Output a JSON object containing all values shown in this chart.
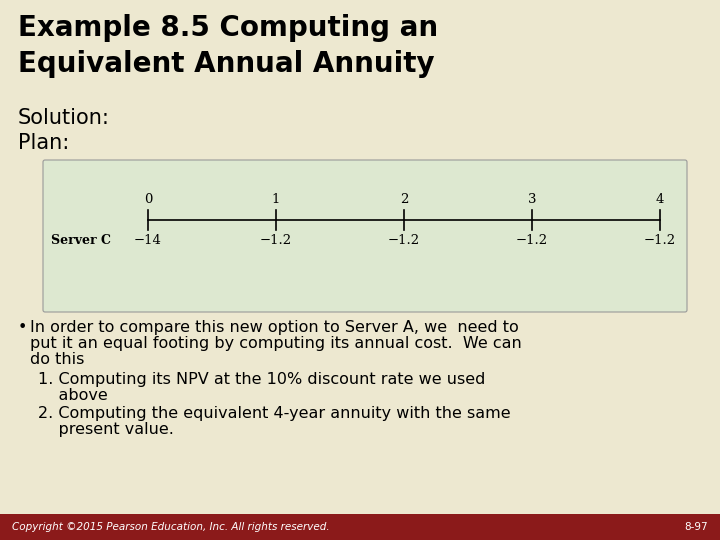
{
  "title_line1": "Example 8.5 Computing an",
  "title_line2": "Equivalent Annual Annuity",
  "bg_color": "#EDE8D0",
  "title_color": "#000000",
  "title_fontsize": 20,
  "solution_text": "Solution:",
  "plan_text": "Plan:",
  "section_fontsize": 15,
  "timeline_bg": "#DDE8D0",
  "timeline_years": [
    "0",
    "1",
    "2",
    "3",
    "4"
  ],
  "timeline_row_label": "Server C",
  "timeline_values": [
    "−14",
    "−1.2",
    "−1.2",
    "−1.2",
    "−1.2"
  ],
  "bullet_text_lines": [
    "In order to compare this new option to Server A, we  need to",
    "put it an equal footing by computing its annual cost.  We can",
    "do this"
  ],
  "sub_item1_lines": [
    "1. Computing its NPV at the 10% discount rate we used",
    "    above"
  ],
  "sub_item2_lines": [
    "2. Computing the equivalent 4-year annuity with the same",
    "    present value."
  ],
  "footer_text": "Copyright ©2015 Pearson Education, Inc. All rights reserved.",
  "footer_right": "8-97",
  "footer_bg": "#8B1A1A",
  "footer_fg": "#FFFFFF",
  "footer_fontsize": 7.5,
  "body_fontsize": 11.5
}
